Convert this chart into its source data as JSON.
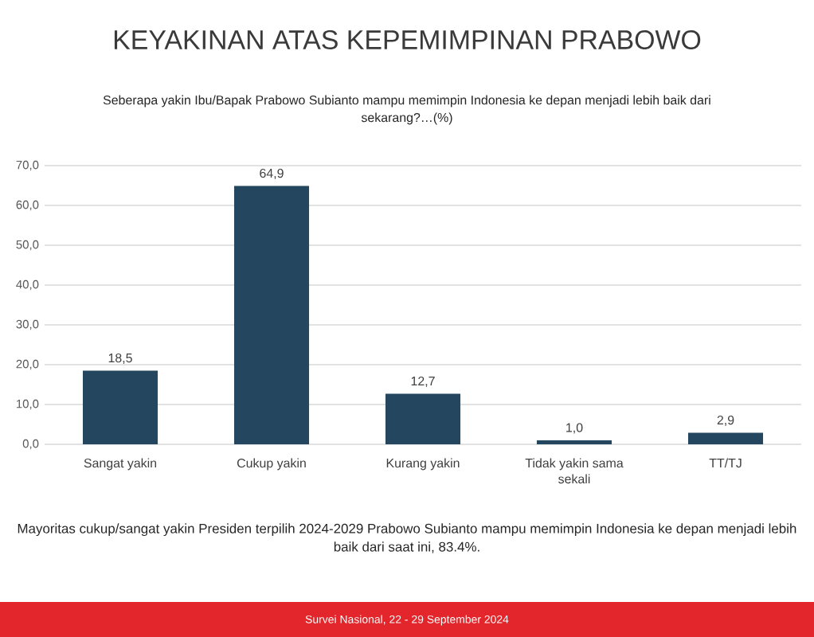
{
  "chart_data": {
    "type": "bar",
    "title": "KEYAKINAN ATAS KEPEMIMPINAN PRABOWO",
    "subtitle": "Seberapa yakin Ibu/Bapak Prabowo Subianto mampu memimpin Indonesia ke depan menjadi lebih baik dari sekarang?…(%)",
    "categories": [
      "Sangat yakin",
      "Cukup yakin",
      "Kurang yakin",
      "Tidak yakin sama sekali",
      "TT/TJ"
    ],
    "values": [
      18.5,
      64.9,
      12.7,
      1.0,
      2.9
    ],
    "value_labels": [
      "18,5",
      "64,9",
      "12,7",
      "1,0",
      "2,9"
    ],
    "color": "#24475f",
    "ylim": [
      0,
      70
    ],
    "yticks": [
      {
        "value": 0,
        "label": "0,0"
      },
      {
        "value": 10,
        "label": "10,0"
      },
      {
        "value": 20,
        "label": "20,0"
      },
      {
        "value": 30,
        "label": "30,0"
      },
      {
        "value": 40,
        "label": "40,0"
      },
      {
        "value": 50,
        "label": "50,0"
      },
      {
        "value": 60,
        "label": "60,0"
      },
      {
        "value": 70,
        "label": "70,0"
      }
    ],
    "grid": "y",
    "annotations": [
      "Mayoritas cukup/sangat yakin Presiden terpilih 2024-2029 Prabowo Subianto mampu memimpin Indonesia ke depan menjadi lebih baik dari saat ini, 83.4%.",
      "Survei Nasional, 22 - 29 September 2024"
    ]
  }
}
